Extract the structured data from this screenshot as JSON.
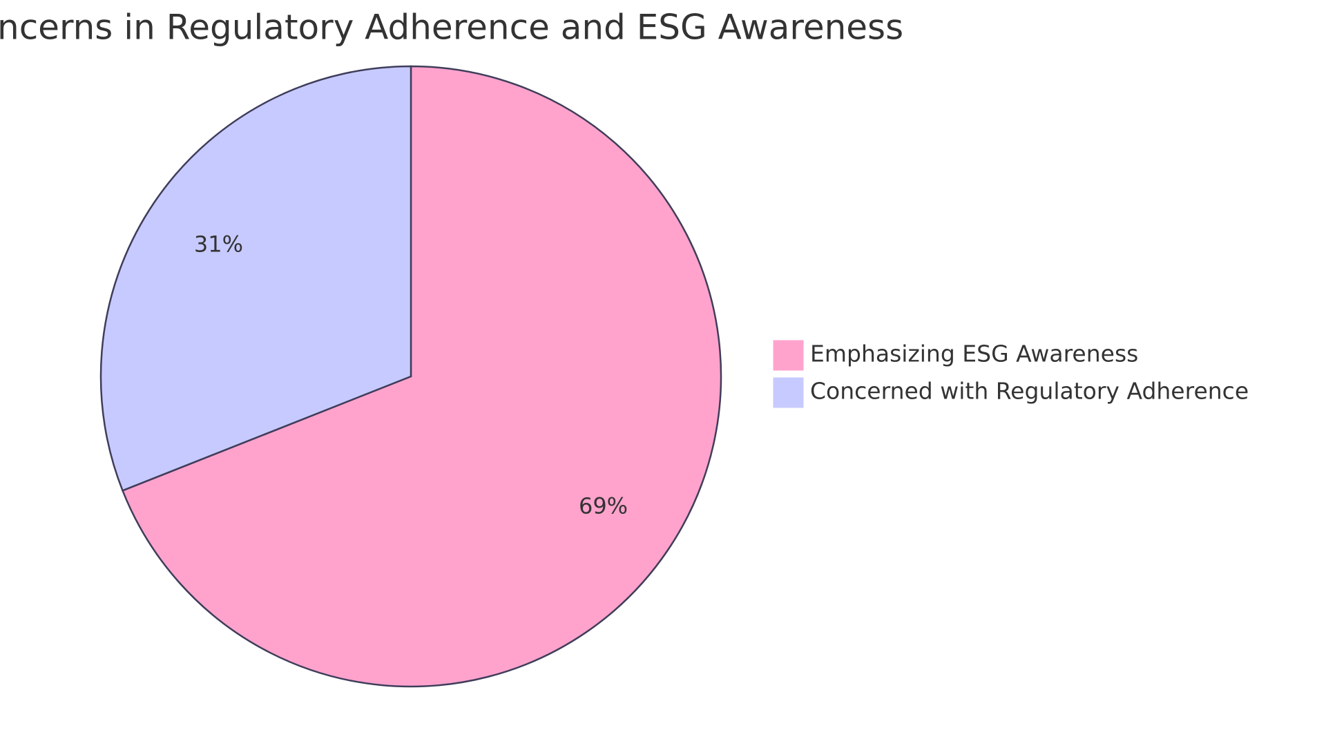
{
  "chart_data": {
    "type": "pie",
    "title": "ncerns in Regulatory Adherence and ESG Awareness",
    "categories": [
      "Emphasizing ESG Awareness",
      "Concerned with Regulatory Adherence"
    ],
    "values": [
      69,
      31
    ],
    "value_labels": [
      "69%",
      "31%"
    ],
    "colors": [
      "#ffa3cd",
      "#c7caff"
    ],
    "legend": "right"
  }
}
